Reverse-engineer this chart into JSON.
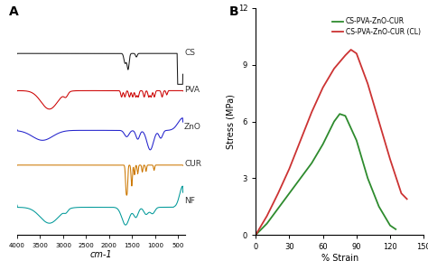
{
  "panel_a_label": "A",
  "panel_b_label": "B",
  "ftir": {
    "xlabel": "cm-1",
    "xticks": [
      4000,
      3500,
      3000,
      2500,
      2000,
      1500,
      1000,
      500
    ]
  },
  "stress_strain": {
    "xlabel": "% Strain",
    "ylabel": "Stress (MPa)",
    "xlim": [
      0,
      150
    ],
    "ylim": [
      0,
      12
    ],
    "xticks": [
      0,
      30,
      60,
      90,
      120,
      150
    ],
    "yticks": [
      0,
      3,
      6,
      9,
      12
    ],
    "green_label": "CS-PVA-ZnO-CUR",
    "red_label": "CS-PVA-ZnO-CUR (CL)",
    "green_color": "#2e8b2e",
    "red_color": "#cc3333",
    "green_x": [
      0,
      10,
      20,
      30,
      40,
      50,
      60,
      70,
      75,
      80,
      90,
      100,
      110,
      120,
      125
    ],
    "green_y": [
      0,
      0.6,
      1.4,
      2.2,
      3.0,
      3.8,
      4.8,
      6.0,
      6.4,
      6.3,
      5.0,
      3.0,
      1.5,
      0.5,
      0.3
    ],
    "red_x": [
      0,
      10,
      20,
      30,
      40,
      50,
      60,
      70,
      80,
      85,
      90,
      100,
      110,
      120,
      130,
      135
    ],
    "red_y": [
      0,
      1.0,
      2.2,
      3.5,
      5.0,
      6.5,
      7.8,
      8.8,
      9.5,
      9.8,
      9.6,
      8.0,
      6.0,
      4.0,
      2.2,
      1.9
    ]
  }
}
